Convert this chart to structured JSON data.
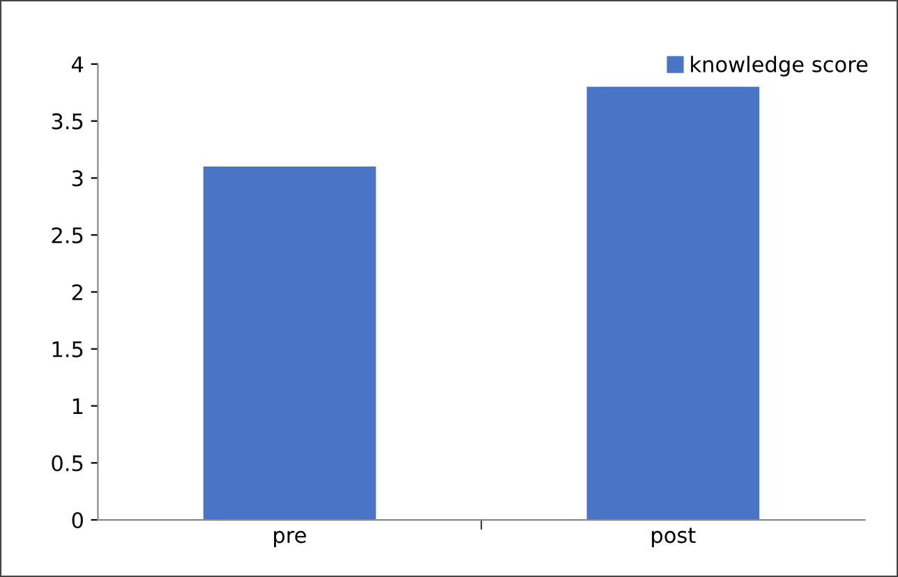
{
  "chart_data": {
    "type": "bar",
    "categories": [
      "pre",
      "post"
    ],
    "series": [
      {
        "name": "knowledge score",
        "color": "#4a74c6",
        "values": [
          3.1,
          3.8
        ]
      }
    ],
    "ylim": [
      0,
      4
    ],
    "yticks": [
      0,
      0.5,
      1,
      1.5,
      2,
      2.5,
      3,
      3.5,
      4
    ],
    "grid": false,
    "legend": "top right"
  }
}
